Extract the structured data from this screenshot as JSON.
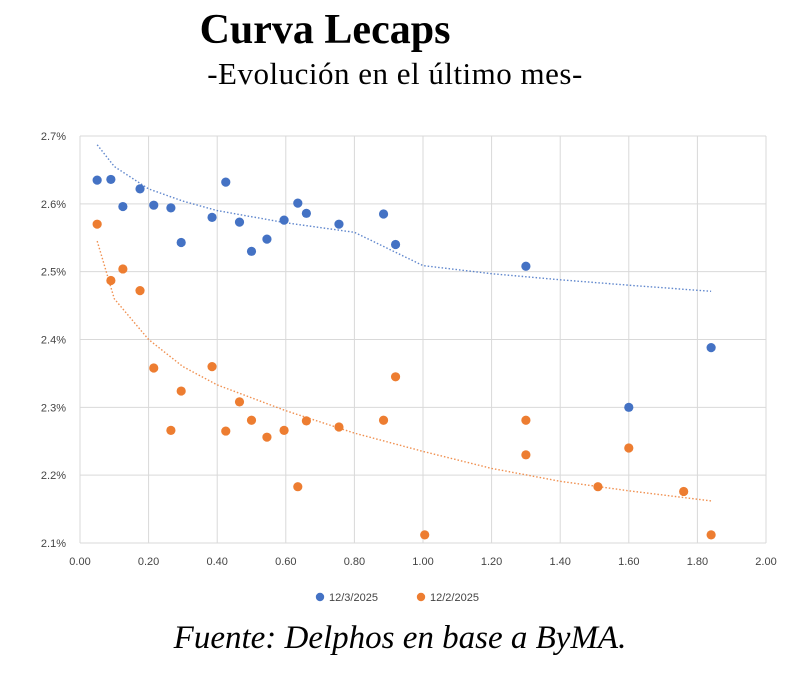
{
  "header": {
    "title": "Curva Lecaps",
    "subtitle": "-Evolución en el último mes-"
  },
  "footer": {
    "source": "Fuente: Delphos en base a ByMA."
  },
  "chart_data": {
    "type": "scatter",
    "title": "Curva Lecaps",
    "subtitle": "-Evolución en el último mes-",
    "xlabel": "",
    "ylabel": "",
    "xlim": [
      0,
      2
    ],
    "ylim": [
      2.1,
      2.7
    ],
    "x_ticks": [
      "0.00",
      "0.20",
      "0.40",
      "0.60",
      "0.80",
      "1.00",
      "1.20",
      "1.40",
      "1.60",
      "1.80",
      "2.00"
    ],
    "x_tick_values": [
      0,
      0.2,
      0.4,
      0.6,
      0.8,
      1.0,
      1.2,
      1.4,
      1.6,
      1.8,
      2.0
    ],
    "y_ticks": [
      "2.1%",
      "2.2%",
      "2.3%",
      "2.4%",
      "2.5%",
      "2.6%",
      "2.7%"
    ],
    "y_tick_values": [
      2.1,
      2.2,
      2.3,
      2.4,
      2.5,
      2.6,
      2.7
    ],
    "grid": true,
    "legend_position": "bottom",
    "series": [
      {
        "name": "12/3/2025",
        "color": "#4472C4",
        "points": [
          [
            0.05,
            2.635
          ],
          [
            0.09,
            2.636
          ],
          [
            0.125,
            2.596
          ],
          [
            0.175,
            2.622
          ],
          [
            0.215,
            2.598
          ],
          [
            0.265,
            2.594
          ],
          [
            0.295,
            2.543
          ],
          [
            0.385,
            2.58
          ],
          [
            0.425,
            2.632
          ],
          [
            0.465,
            2.573
          ],
          [
            0.5,
            2.53
          ],
          [
            0.545,
            2.548
          ],
          [
            0.595,
            2.576
          ],
          [
            0.635,
            2.601
          ],
          [
            0.66,
            2.586
          ],
          [
            0.755,
            2.57
          ],
          [
            0.885,
            2.585
          ],
          [
            0.92,
            2.54
          ],
          [
            1.3,
            2.508
          ],
          [
            1.6,
            2.3
          ],
          [
            1.84,
            2.388
          ]
        ],
        "trend": [
          [
            0.05,
            2.687
          ],
          [
            0.1,
            2.655
          ],
          [
            0.2,
            2.622
          ],
          [
            0.3,
            2.604
          ],
          [
            0.4,
            2.59
          ],
          [
            0.6,
            2.572
          ],
          [
            0.8,
            2.558
          ],
          [
            1.0,
            2.509
          ],
          [
            1.2,
            2.497
          ],
          [
            1.4,
            2.488
          ],
          [
            1.6,
            2.48
          ],
          [
            1.84,
            2.471
          ]
        ]
      },
      {
        "name": "12/2/2025",
        "color": "#ED7D31",
        "points": [
          [
            0.05,
            2.57
          ],
          [
            0.09,
            2.487
          ],
          [
            0.125,
            2.504
          ],
          [
            0.175,
            2.472
          ],
          [
            0.215,
            2.358
          ],
          [
            0.265,
            2.266
          ],
          [
            0.295,
            2.324
          ],
          [
            0.385,
            2.36
          ],
          [
            0.425,
            2.265
          ],
          [
            0.465,
            2.308
          ],
          [
            0.5,
            2.281
          ],
          [
            0.545,
            2.256
          ],
          [
            0.595,
            2.266
          ],
          [
            0.635,
            2.183
          ],
          [
            0.66,
            2.28
          ],
          [
            0.755,
            2.271
          ],
          [
            0.885,
            2.281
          ],
          [
            0.92,
            2.345
          ],
          [
            1.005,
            2.112
          ],
          [
            1.3,
            2.281
          ],
          [
            1.3,
            2.23
          ],
          [
            1.51,
            2.183
          ],
          [
            1.6,
            2.24
          ],
          [
            1.76,
            2.176
          ],
          [
            1.84,
            2.112
          ]
        ],
        "trend": [
          [
            0.05,
            2.545
          ],
          [
            0.1,
            2.46
          ],
          [
            0.2,
            2.4
          ],
          [
            0.3,
            2.36
          ],
          [
            0.4,
            2.333
          ],
          [
            0.6,
            2.295
          ],
          [
            0.8,
            2.262
          ],
          [
            1.0,
            2.235
          ],
          [
            1.2,
            2.21
          ],
          [
            1.4,
            2.191
          ],
          [
            1.6,
            2.177
          ],
          [
            1.84,
            2.162
          ]
        ]
      }
    ]
  }
}
